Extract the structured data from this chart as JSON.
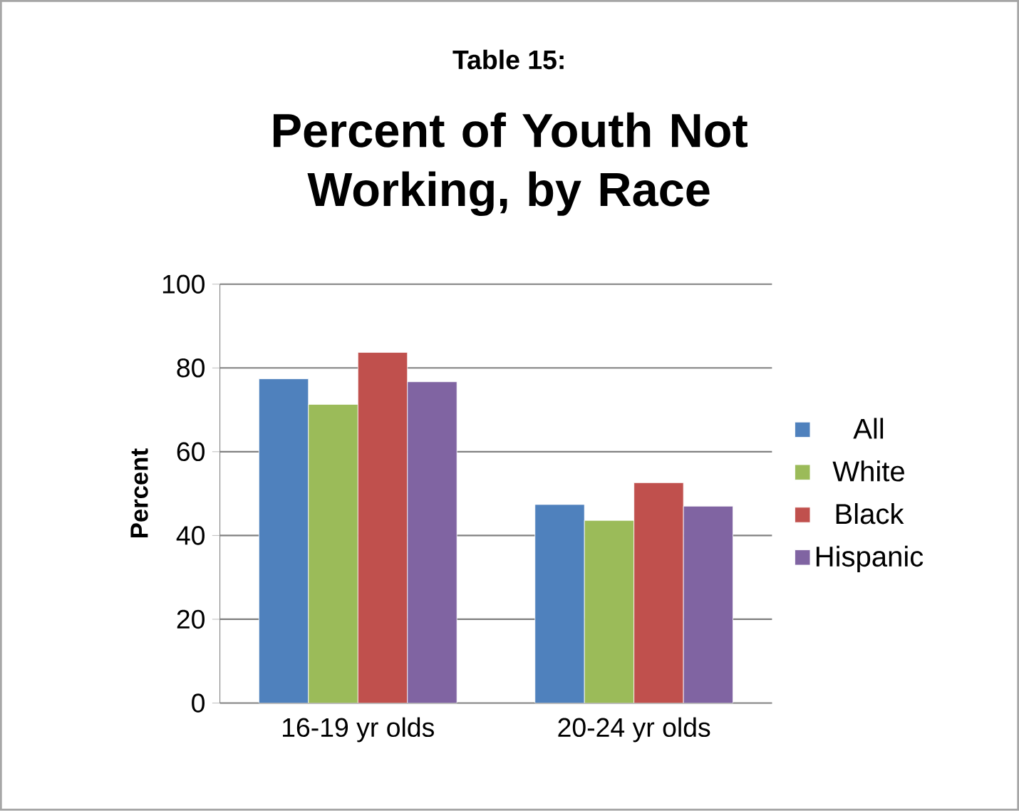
{
  "chart_data": {
    "type": "bar",
    "subtitle": "Table 15:",
    "title": "Percent of Youth Not Working, by Race",
    "ylabel": "Percent",
    "categories": [
      "16-19 yr olds",
      "20-24 yr olds"
    ],
    "series": [
      {
        "name": "All",
        "color": "#4f81bd",
        "values": [
          77.4,
          47.4
        ]
      },
      {
        "name": "White",
        "color": "#9bbb59",
        "values": [
          71.3,
          43.6
        ]
      },
      {
        "name": "Black",
        "color": "#c0504d",
        "values": [
          83.7,
          52.6
        ]
      },
      {
        "name": "Hispanic",
        "color": "#8064a2",
        "values": [
          76.7,
          47.0
        ]
      }
    ],
    "ylim": [
      0,
      100
    ],
    "yticks": [
      0,
      20,
      40,
      60,
      80,
      100
    ],
    "grid": "y",
    "legend": "right"
  }
}
